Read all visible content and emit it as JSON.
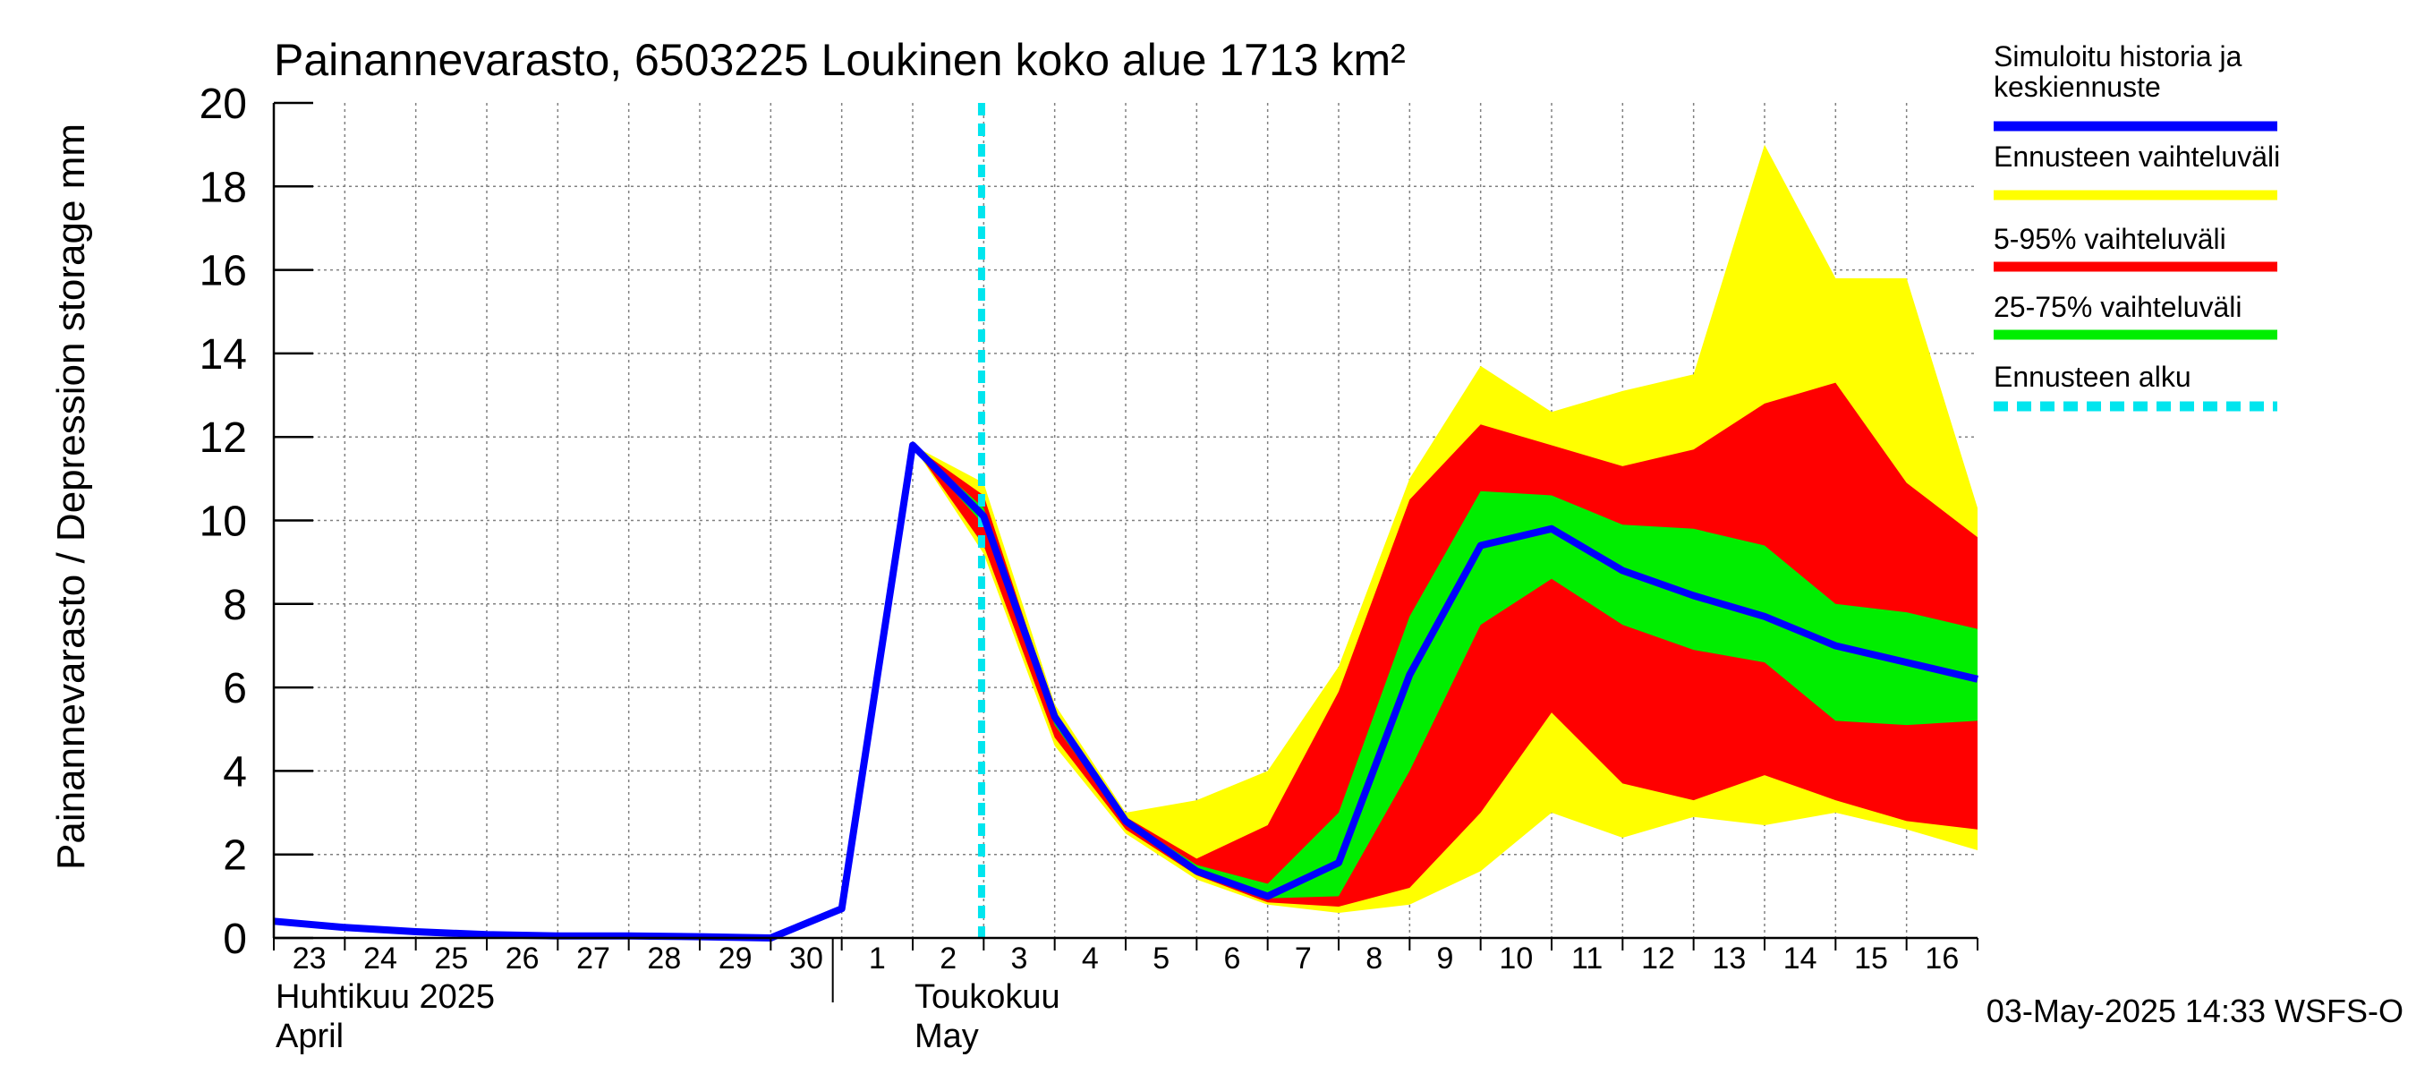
{
  "chart_data": {
    "type": "area",
    "title": "Painannevarasto, 6503225 Loukinen koko alue 1713 km²",
    "ylabel": "Painannevarasto / Depression storage    mm",
    "ylim": [
      0,
      20
    ],
    "yticks": [
      0,
      2,
      4,
      6,
      8,
      10,
      12,
      14,
      16,
      18,
      20
    ],
    "ytick_labels": [
      "0",
      "2",
      "4",
      "6",
      "8",
      "10",
      "12",
      "14",
      "16",
      "18",
      "20"
    ],
    "x_range": [
      0,
      24
    ],
    "day_labels": [
      "23",
      "24",
      "25",
      "26",
      "27",
      "28",
      "29",
      "30",
      "1",
      "2",
      "3",
      "4",
      "5",
      "6",
      "7",
      "8",
      "9",
      "10",
      "11",
      "12",
      "13",
      "14",
      "15",
      "16"
    ],
    "month_labels": [
      {
        "line1": "Huhtikuu  2025",
        "line2": "April",
        "day_index": 0
      },
      {
        "line1": "Toukokuu",
        "line2": "May",
        "day_index": 9
      }
    ],
    "month_boundary_day_index": 8,
    "forecast_start_x": 9.97,
    "bands": {
      "x": [
        9,
        10,
        11,
        12,
        13,
        14,
        15,
        16,
        17,
        18,
        19,
        20,
        21,
        22,
        23,
        24
      ],
      "full_hi": [
        11.8,
        10.9,
        5.6,
        3.0,
        3.3,
        4.0,
        6.5,
        11.0,
        13.7,
        12.6,
        13.1,
        13.5,
        19.0,
        15.8,
        15.8,
        10.3
      ],
      "full_lo": [
        11.8,
        9.2,
        4.6,
        2.5,
        1.4,
        0.8,
        0.6,
        0.8,
        1.6,
        3.0,
        2.4,
        2.9,
        2.7,
        3.0,
        2.6,
        2.1
      ],
      "p95": [
        11.8,
        10.6,
        5.4,
        2.9,
        1.9,
        2.7,
        5.9,
        10.5,
        12.3,
        11.8,
        11.3,
        11.7,
        12.8,
        13.3,
        10.9,
        9.6
      ],
      "p5": [
        11.8,
        9.4,
        4.8,
        2.6,
        1.5,
        0.85,
        0.75,
        1.2,
        3.0,
        5.4,
        3.7,
        3.3,
        3.9,
        3.3,
        2.8,
        2.6
      ],
      "p75": [
        11.8,
        10.3,
        5.3,
        2.85,
        1.75,
        1.3,
        3.0,
        7.7,
        10.7,
        10.6,
        9.9,
        9.8,
        9.4,
        8.0,
        7.8,
        7.4
      ],
      "p25": [
        11.8,
        9.9,
        5.1,
        2.75,
        1.6,
        0.95,
        1.0,
        4.0,
        7.5,
        8.6,
        7.5,
        6.9,
        6.6,
        5.2,
        5.1,
        5.2
      ]
    },
    "series": [
      {
        "name": "Simuloitu historia ja keskiennuste",
        "color": "#0000ff",
        "x": [
          0,
          1,
          2,
          3,
          4,
          5,
          6,
          7,
          8,
          9,
          10,
          11,
          12,
          13,
          14,
          15,
          16,
          17,
          18,
          19,
          20,
          21,
          22,
          23,
          24
        ],
        "values": [
          0.4,
          0.25,
          0.15,
          0.08,
          0.05,
          0.05,
          0.03,
          0.0,
          0.7,
          11.8,
          10.1,
          5.3,
          2.8,
          1.6,
          1.0,
          1.8,
          6.3,
          9.4,
          9.8,
          8.8,
          8.2,
          7.7,
          7.0,
          6.6,
          6.2
        ]
      }
    ],
    "legend": [
      {
        "label": "Simuloitu historia ja keskiennuste",
        "line1": "Simuloitu historia ja",
        "line2": "keskiennuste",
        "color": "#0000ff",
        "style": "solid"
      },
      {
        "label": "Ennusteen vaihteluväli",
        "color": "#ffff00",
        "style": "solid"
      },
      {
        "label": "5-95% vaihteluväli",
        "color": "#ff0000",
        "style": "solid"
      },
      {
        "label": "25-75% vaihteluväli",
        "color": "#00ee00",
        "style": "solid"
      },
      {
        "label": "Ennusteen alku",
        "color": "#00e5ee",
        "style": "dashed"
      }
    ],
    "legend_position": "right",
    "colors": {
      "yellow": "#ffff00",
      "red": "#ff0000",
      "green": "#00ee00",
      "blue": "#0000ff",
      "cyan": "#00e5ee",
      "grid": "#808080"
    },
    "timestamp": "03-May-2025 14:33 WSFS-O"
  }
}
